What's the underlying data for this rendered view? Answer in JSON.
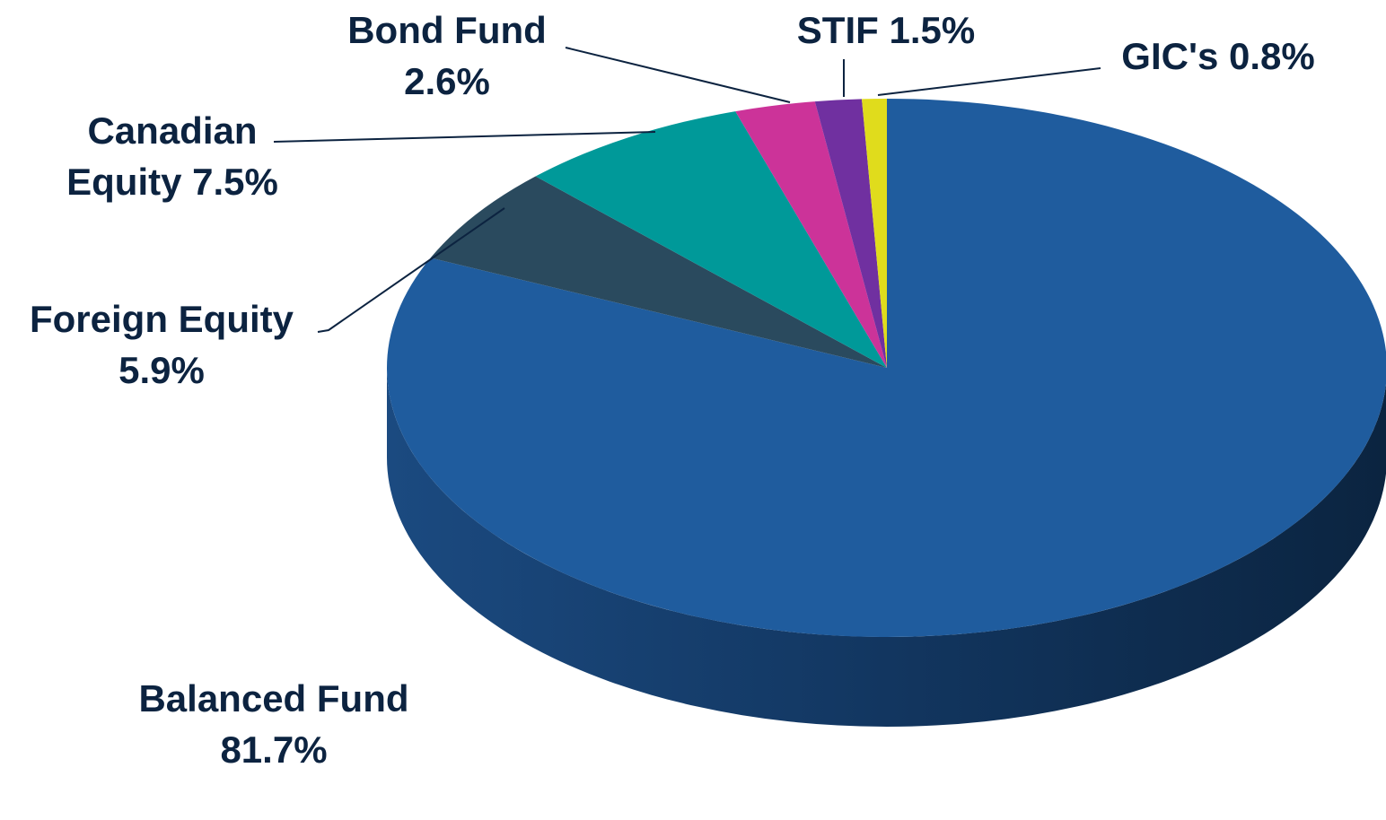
{
  "chart_data": {
    "type": "pie3d",
    "categories": [
      "Balanced Fund",
      "Foreign Equity",
      "Canadian Equity",
      "Bond Fund",
      "STIF",
      "GIC's"
    ],
    "values": [
      81.7,
      5.9,
      7.5,
      2.6,
      1.5,
      0.8
    ],
    "value_labels": [
      "81.7%",
      "5.9%",
      "7.5%",
      "2.6%",
      "1.5%",
      "0.8%"
    ],
    "colors": [
      "#1f5c9e",
      "#2a4a5e",
      "#009999",
      "#cc3399",
      "#7030a0",
      "#e0dc1c"
    ]
  }
}
